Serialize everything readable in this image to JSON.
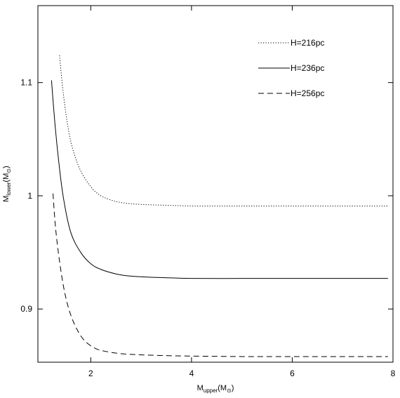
{
  "chart_data": {
    "type": "line",
    "title": "",
    "xlabel": {
      "main": "M",
      "sub": "upper",
      "unit_open": "(M",
      "unit_sym": "⊙",
      "unit_close": ")"
    },
    "ylabel": {
      "main": "M",
      "sub": "lower",
      "unit_open": "(M",
      "unit_sym": "⊙",
      "unit_close": ")"
    },
    "xlim": [
      0.95,
      8.0
    ],
    "ylim": [
      0.853,
      1.168
    ],
    "x_ticks": [
      2,
      4,
      6,
      8
    ],
    "x_tick_labels": [
      "2",
      "4",
      "6",
      "8"
    ],
    "y_ticks": [
      0.9,
      1.0,
      1.1
    ],
    "y_tick_labels": [
      "0.9",
      "1",
      "1.1"
    ],
    "grid": false,
    "legend_position": "top-right",
    "series": [
      {
        "name": "H=216pc",
        "style": "dotted",
        "x": [
          1.38,
          1.45,
          1.55,
          1.65,
          1.8,
          2.0,
          2.2,
          2.5,
          2.8,
          3.2,
          3.6,
          4.0,
          4.5,
          5.0,
          6.0,
          7.0,
          7.9
        ],
        "y": [
          1.124,
          1.092,
          1.06,
          1.04,
          1.022,
          1.008,
          1.0,
          0.995,
          0.993,
          0.992,
          0.9915,
          0.991,
          0.991,
          0.991,
          0.991,
          0.991,
          0.991
        ]
      },
      {
        "name": "H=236pc",
        "style": "solid",
        "x": [
          1.22,
          1.28,
          1.35,
          1.45,
          1.6,
          1.8,
          2.0,
          2.2,
          2.5,
          2.8,
          3.2,
          3.6,
          4.0,
          5.0,
          6.0,
          7.0,
          7.9
        ],
        "y": [
          1.102,
          1.068,
          1.036,
          1.0,
          0.968,
          0.95,
          0.94,
          0.935,
          0.931,
          0.929,
          0.928,
          0.9275,
          0.927,
          0.927,
          0.927,
          0.927,
          0.927
        ]
      },
      {
        "name": "H=256pc",
        "style": "dashed",
        "x": [
          1.25,
          1.3,
          1.38,
          1.48,
          1.6,
          1.75,
          1.9,
          2.1,
          2.3,
          2.6,
          3.0,
          3.5,
          4.0,
          5.0,
          6.0,
          7.0,
          7.9
        ],
        "y": [
          1.002,
          0.972,
          0.942,
          0.915,
          0.895,
          0.88,
          0.871,
          0.865,
          0.8625,
          0.8605,
          0.8595,
          0.8588,
          0.8584,
          0.858,
          0.858,
          0.858,
          0.858
        ]
      }
    ]
  }
}
